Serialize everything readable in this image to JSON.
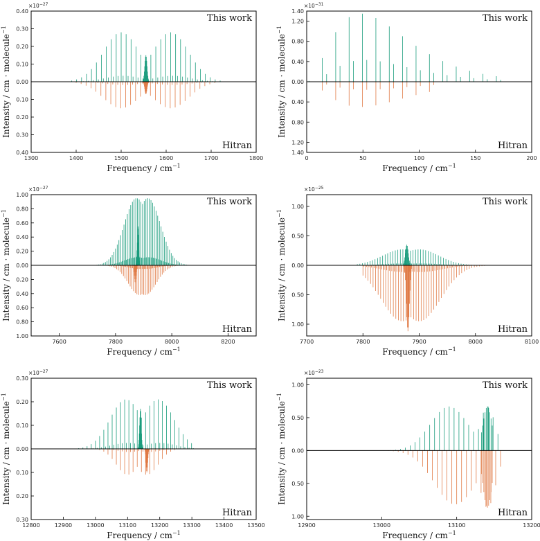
{
  "colors": {
    "this_work": "#1a9c7c",
    "hitran": "#e07a45",
    "axis": "#000000"
  },
  "chart_data": [
    {
      "type": "line",
      "panel": "top-left",
      "xlabel": "Frequency / cm",
      "xlabel_sup": "−1",
      "ylabel": "Intensity / cm · molecule",
      "ylabel_sup": "−1",
      "multiplier": "×10",
      "multiplier_exp": "−27",
      "legend_top": "This work",
      "legend_bottom": "Hitran",
      "xlim": [
        1300,
        1800
      ],
      "xticks": [
        "1300",
        "1400",
        "1500",
        "1600",
        "1700",
        "1800"
      ],
      "ylim_up": 0.4,
      "ylim_down": 0.4,
      "yticks_up": [
        "0.00",
        "0.10",
        "0.20",
        "0.30",
        "0.40"
      ],
      "yticks_down": [
        "0.10",
        "0.20",
        "0.30",
        "0.40"
      ],
      "this_work": {
        "center": 1555,
        "spacing": 11,
        "lobe_offset": 55,
        "lobe_width": 40,
        "peak": 0.28,
        "range": [
          1390,
          1720
        ],
        "q_center": 1555,
        "q_peak": 0.15
      },
      "hitran": {
        "center": 1555,
        "spacing": 11,
        "lobe_offset": 55,
        "lobe_width": 40,
        "peak": 0.15,
        "range": [
          1400,
          1715
        ],
        "q_center": 1555,
        "q_peak": 0.07
      }
    },
    {
      "type": "line",
      "panel": "top-right",
      "xlabel": "Frequency / cm",
      "xlabel_sup": "−1",
      "ylabel": "Intensity / cm · molecule",
      "ylabel_sup": "−1",
      "multiplier": "×10",
      "multiplier_exp": "−31",
      "legend_top": "This work",
      "legend_bottom": "Hitran",
      "xlim": [
        0,
        200
      ],
      "xticks": [
        "0",
        "50",
        "100",
        "150",
        "200"
      ],
      "ylim_up": 1.4,
      "ylim_down": 1.4,
      "yticks_up": [
        "0.00",
        "0.40",
        "0.80",
        "1.20",
        "1.40"
      ],
      "yticks_down": [
        "0.40",
        "0.80",
        "1.20",
        "1.40"
      ],
      "this_work": {
        "mode": "rotational",
        "spacing": 11.9,
        "peak": 1.35,
        "max_at": 48,
        "range": [
          2,
          170
        ]
      },
      "hitran": {
        "mode": "rotational",
        "spacing": 11.9,
        "peak": 0.5,
        "max_at": 48,
        "range": [
          2,
          120
        ]
      }
    },
    {
      "type": "line",
      "panel": "middle-left",
      "xlabel": "Frequency / cm",
      "xlabel_sup": "−1",
      "ylabel": "Intensity / cm · molecule",
      "ylabel_sup": "−1",
      "multiplier": "×10",
      "multiplier_exp": "−27",
      "legend_top": "This work",
      "legend_bottom": "Hitran",
      "xlim": [
        7500,
        8300
      ],
      "xticks": [
        "7600",
        "7800",
        "8000",
        "8200"
      ],
      "ylim_up": 1.0,
      "ylim_down": 1.0,
      "yticks_up": [
        "0.00",
        "0.20",
        "0.40",
        "0.60",
        "0.80",
        "1.00"
      ],
      "yticks_down": [
        "0.20",
        "0.40",
        "0.60",
        "0.80",
        "1.00"
      ],
      "this_work": {
        "center": 7895,
        "spacing": 6,
        "lobe_offset": 20,
        "lobe_width": 45,
        "peak": 0.95,
        "range": [
          7680,
          8090
        ],
        "q_center": 7880,
        "q_peak": 0.55
      },
      "hitran": {
        "center": 7895,
        "spacing": 6,
        "lobe_offset": 10,
        "lobe_width": 40,
        "peak": 0.42,
        "range": [
          7750,
          8050
        ],
        "q_center": 7870,
        "q_peak": 0.25
      }
    },
    {
      "type": "line",
      "panel": "middle-right",
      "xlabel": "Frequency / cm",
      "xlabel_sup": "−1",
      "ylabel": "Intensity / cm · molecule",
      "ylabel_sup": "−1",
      "multiplier": "×10",
      "multiplier_exp": "−25",
      "legend_top": "This work",
      "legend_bottom": "Hitran",
      "xlim": [
        7700,
        8100
      ],
      "xticks": [
        "7700",
        "7800",
        "7900",
        "8000",
        "8100"
      ],
      "ylim_up": 1.2,
      "ylim_down": 1.2,
      "yticks_up": [
        "0.00",
        "0.50",
        "1.00"
      ],
      "yticks_down": [
        "0.50",
        "1.00"
      ],
      "this_work": {
        "center": 7885,
        "spacing": 4.5,
        "lobe_offset": 15,
        "lobe_width": 35,
        "peak": 0.27,
        "range": [
          7790,
          8010
        ],
        "q_center": 7878,
        "q_peak": 0.35
      },
      "hitran": {
        "center": 7885,
        "spacing": 4.5,
        "lobe_offset": 15,
        "lobe_width": 38,
        "peak": 0.95,
        "range": [
          7800,
          8030
        ],
        "q_center": 7880,
        "q_peak": 1.12
      }
    },
    {
      "type": "line",
      "panel": "bottom-left",
      "xlabel": "Frequency / cm",
      "xlabel_sup": "−1",
      "ylabel": "Intensity / cm · molecule",
      "ylabel_sup": "−1",
      "multiplier": "×10",
      "multiplier_exp": "−27",
      "legend_top": "This work",
      "legend_bottom": "Hitran",
      "xlim": [
        12800,
        13500
      ],
      "xticks": [
        "12800",
        "12900",
        "13000",
        "13100",
        "13200",
        "13300",
        "13400",
        "13500"
      ],
      "ylim_up": 0.3,
      "ylim_down": 0.3,
      "yticks_up": [
        "0.00",
        "0.10",
        "0.20",
        "0.30"
      ],
      "yticks_down": [
        "0.10",
        "0.20",
        "0.30"
      ],
      "this_work": {
        "center": 13145,
        "spacing": 13,
        "lobe_offset": 50,
        "lobe_width": 50,
        "peak": 0.21,
        "range": [
          12870,
          13305
        ],
        "q_center": 13140,
        "q_peak": 0.17
      },
      "hitran": {
        "center": 13130,
        "spacing": 13,
        "lobe_offset": 30,
        "lobe_width": 35,
        "peak": 0.11,
        "range": [
          13000,
          13260
        ],
        "q_center": 13160,
        "q_peak": 0.1
      }
    },
    {
      "type": "line",
      "panel": "bottom-right",
      "xlabel": "Frequency / cm",
      "xlabel_sup": "−1",
      "ylabel": "Intensity / cm · molecule",
      "ylabel_sup": "−1",
      "multiplier": "×10",
      "multiplier_exp": "−23",
      "legend_top": "This work",
      "legend_bottom": "Hitran",
      "xlim": [
        12900,
        13200
      ],
      "xticks": [
        "12900",
        "13000",
        "13100",
        "13200"
      ],
      "ylim_up": 1.1,
      "ylim_down": 1.05,
      "yticks_up": [
        "0.00",
        "0.50",
        "1.00"
      ],
      "yticks_down": [
        "0.50",
        "1.00"
      ],
      "this_work": {
        "mode": "double",
        "spacing": 6.5,
        "centers": [
          13090,
          13141
        ],
        "widths": [
          25,
          10
        ],
        "peaks": [
          0.67,
          0.67
        ],
        "range": [
          12960,
          13160
        ]
      },
      "hitran": {
        "mode": "double",
        "spacing": 6.5,
        "centers": [
          13098,
          13141
        ],
        "widths": [
          28,
          11
        ],
        "peaks": [
          0.82,
          0.87
        ],
        "range": [
          12970,
          13160
        ]
      }
    }
  ]
}
